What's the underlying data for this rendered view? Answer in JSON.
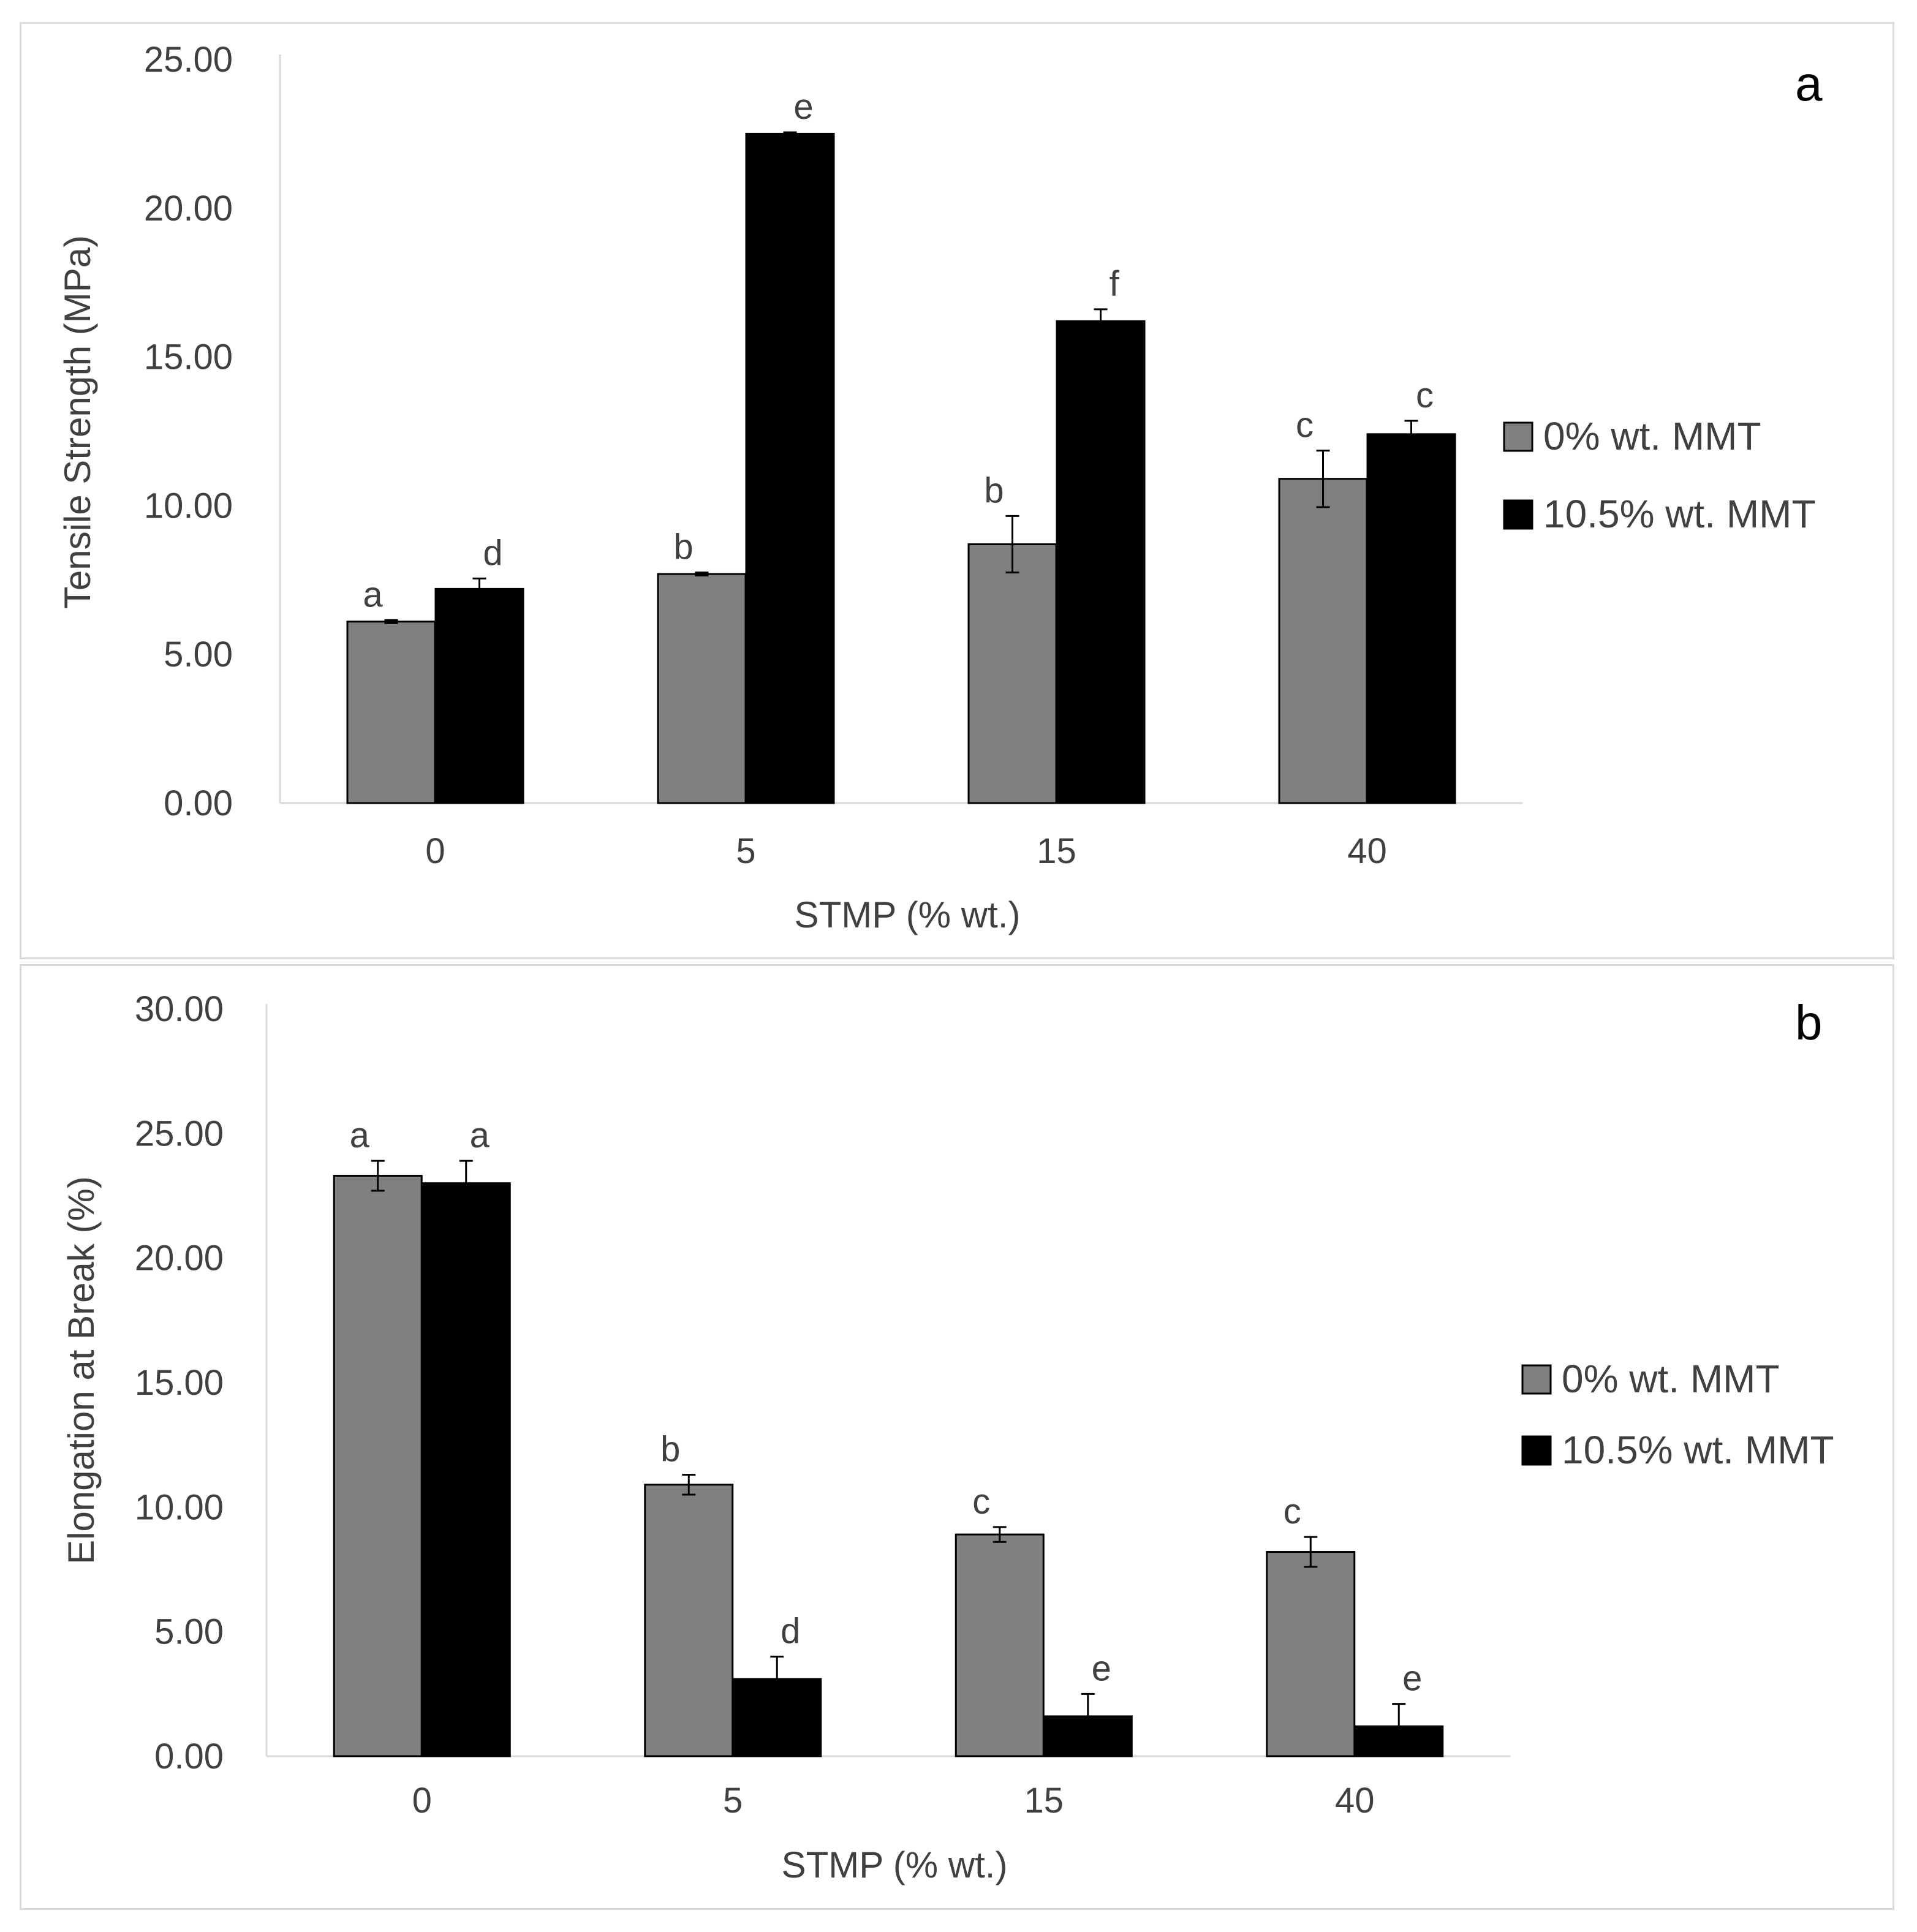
{
  "chart_data": [
    {
      "type": "bar",
      "panel_label": "a",
      "title": "",
      "xlabel": "STMP (% wt.)",
      "ylabel": "Tensile Strength (MPa)",
      "categories": [
        "0",
        "5",
        "15",
        "40"
      ],
      "ylim": [
        0,
        25
      ],
      "yticks": [
        "0.00",
        "5.00",
        "10.00",
        "15.00",
        "20.00",
        "25.00"
      ],
      "grid": false,
      "legend_position": "right",
      "series": [
        {
          "name": "0% wt. MMT",
          "color": "#808080",
          "values": [
            6.1,
            7.7,
            8.7,
            10.9
          ],
          "errors": [
            0.05,
            0.05,
            0.95,
            0.95
          ],
          "letters": [
            "a",
            "b",
            "b",
            "c"
          ]
        },
        {
          "name": "10.5% wt. MMT",
          "color": "#000000",
          "values": [
            7.2,
            22.5,
            16.2,
            12.4
          ],
          "errors": [
            0.35,
            0.05,
            0.4,
            0.45
          ],
          "letters": [
            "d",
            "e",
            "f",
            "c"
          ]
        }
      ]
    },
    {
      "type": "bar",
      "panel_label": "b",
      "title": "",
      "xlabel": "STMP (% wt.)",
      "ylabel": "Elongation at Break (%)",
      "categories": [
        "0",
        "5",
        "15",
        "40"
      ],
      "ylim": [
        0,
        30
      ],
      "yticks": [
        "0.00",
        "5.00",
        "10.00",
        "15.00",
        "20.00",
        "25.00",
        "30.00"
      ],
      "grid": false,
      "legend_position": "right",
      "series": [
        {
          "name": "0% wt. MMT",
          "color": "#808080",
          "values": [
            23.3,
            10.9,
            8.9,
            8.2
          ],
          "errors": [
            0.6,
            0.4,
            0.3,
            0.6
          ],
          "letters": [
            "a",
            "b",
            "c",
            "c"
          ]
        },
        {
          "name": "10.5% wt. MMT",
          "color": "#000000",
          "values": [
            23.0,
            3.1,
            1.6,
            1.2
          ],
          "errors": [
            0.9,
            0.9,
            0.9,
            0.9
          ],
          "letters": [
            "a",
            "d",
            "e",
            "e"
          ]
        }
      ]
    }
  ]
}
